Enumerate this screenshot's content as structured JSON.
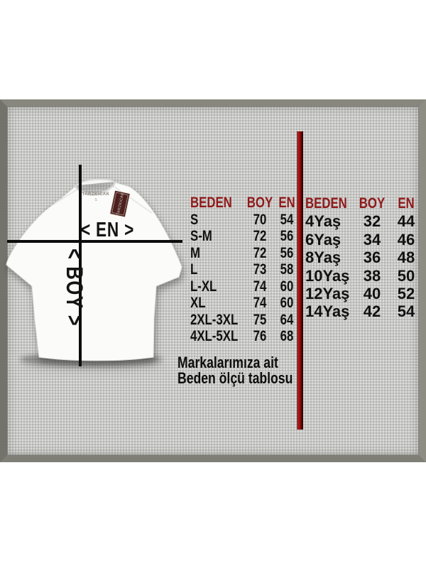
{
  "shirt": {
    "width_label": "< EN >",
    "length_label": "< BOY >",
    "neck_label": "TARZKICAK",
    "neck_size": "S",
    "hang_tag_text": "TARZKICAK"
  },
  "caption": {
    "line1": "Markalarımıza ait",
    "line2": "Beden ölçü tablosu"
  },
  "chart_data": [
    {
      "type": "table",
      "columns": [
        "BEDEN",
        "BOY",
        "EN"
      ],
      "rows": [
        [
          "S",
          "70",
          "54"
        ],
        [
          "S-M",
          "72",
          "56"
        ],
        [
          "M",
          "72",
          "56"
        ],
        [
          "L",
          "73",
          "58"
        ],
        [
          "L-XL",
          "74",
          "60"
        ],
        [
          "XL",
          "74",
          "60"
        ],
        [
          "2XL-3XL",
          "75",
          "64"
        ],
        [
          "4XL-5XL",
          "76",
          "68"
        ]
      ]
    },
    {
      "type": "table",
      "columns": [
        "BEDEN",
        "BOY",
        "EN"
      ],
      "rows": [
        [
          "4Yaş",
          "32",
          "44"
        ],
        [
          "6Yaş",
          "34",
          "46"
        ],
        [
          "8Yaş",
          "36",
          "48"
        ],
        [
          "10Yaş",
          "38",
          "50"
        ],
        [
          "12Yaş",
          "40",
          "52"
        ],
        [
          "14Yaş",
          "42",
          "54"
        ]
      ]
    }
  ],
  "colors": {
    "table_header_red": "#8f1a1a",
    "divider_red": "#9a1010",
    "line_black": "#0c0c0c",
    "panel_gray": "#c7c7c5",
    "frame_olive": "#82827a",
    "hang_tag_maroon": "#4b201d",
    "shirt_white": "#fbfbfa"
  }
}
